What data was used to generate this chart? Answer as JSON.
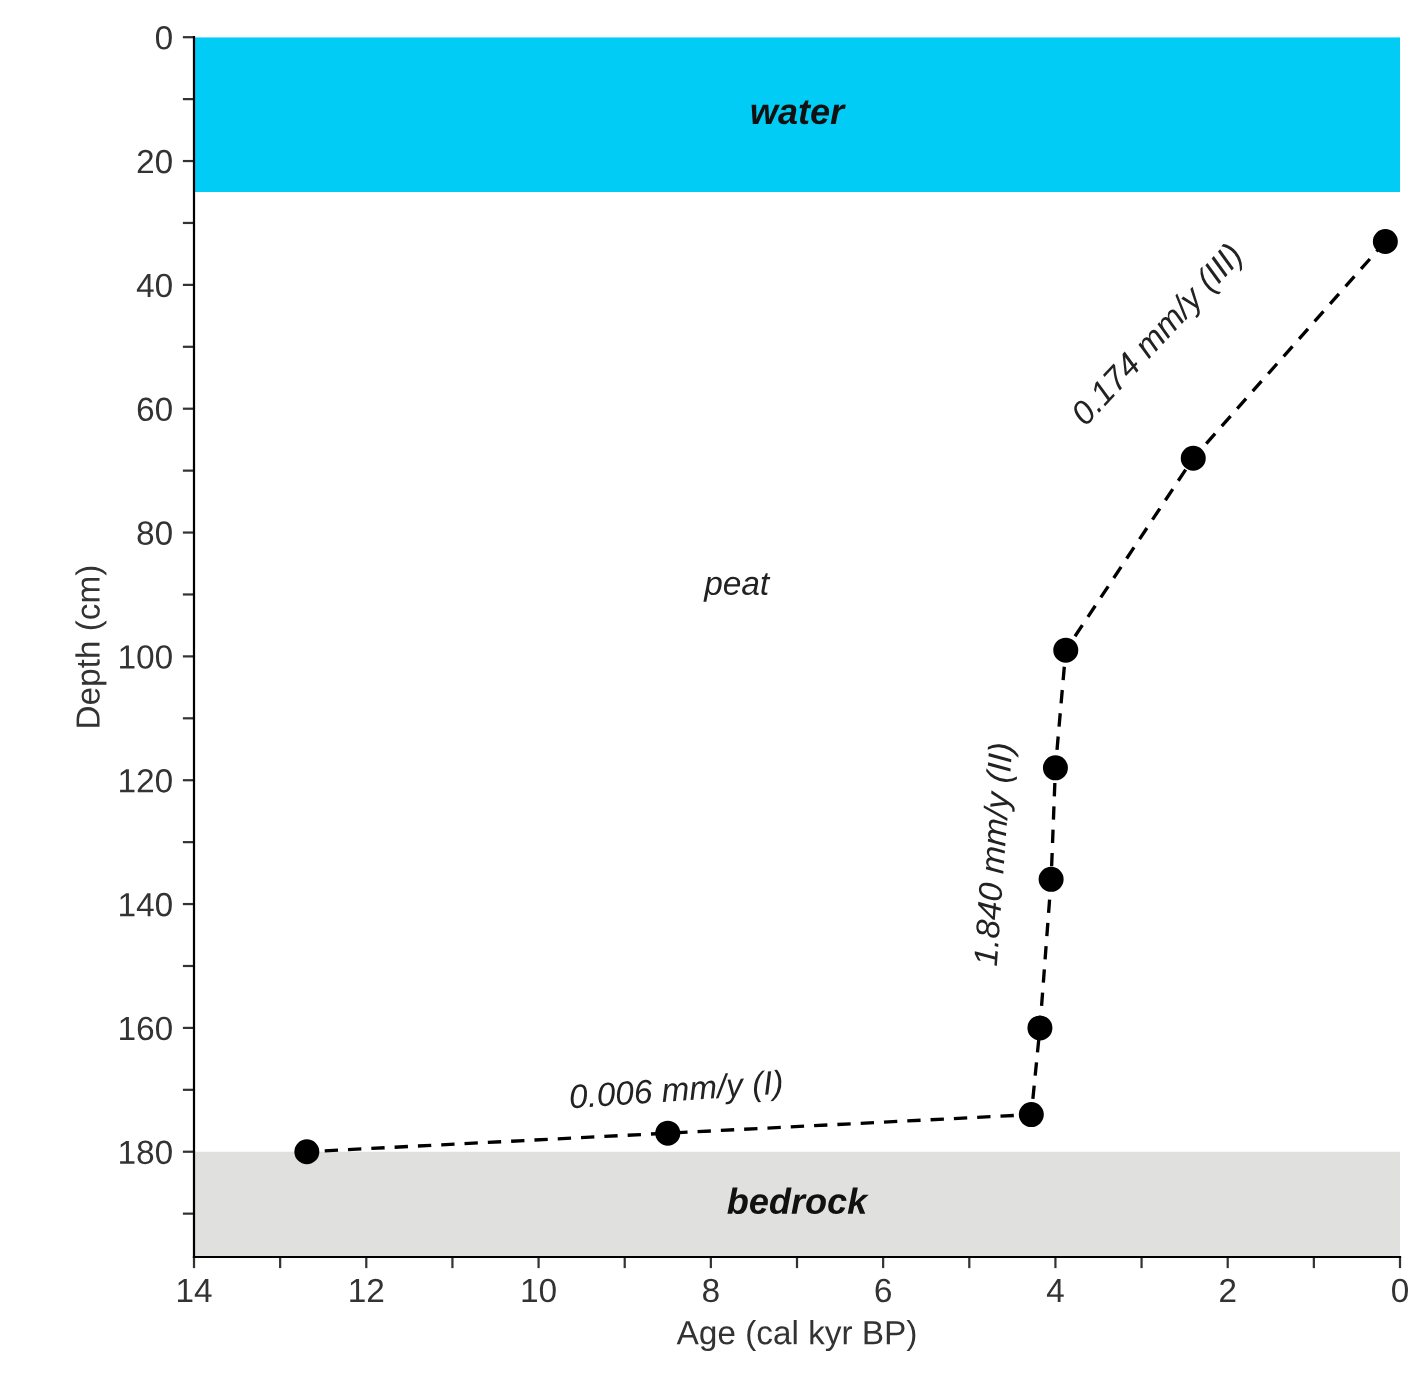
{
  "chart_data": {
    "type": "line",
    "xlabel": "Age (cal kyr BP)",
    "ylabel": "Depth (cm)",
    "x": [
      0.17,
      2.4,
      3.88,
      4.0,
      4.05,
      4.18,
      4.28,
      8.5,
      12.69
    ],
    "series": [
      {
        "color": "#000000",
        "values": [
          33,
          68,
          99,
          118,
          136,
          160,
          174,
          177,
          180
        ]
      }
    ],
    "marker": "circle",
    "line_style": "dashed",
    "grid": false,
    "legend": false,
    "xlim": [
      14,
      0
    ],
    "ylim": [
      197,
      0
    ],
    "xticks": [
      14,
      {
        "value": 13,
        "label": null
      },
      12,
      {
        "value": 11,
        "label": null
      },
      10,
      {
        "value": 9,
        "label": null
      },
      8,
      {
        "value": 7,
        "label": null
      },
      6,
      {
        "value": 5,
        "label": null
      },
      4,
      {
        "value": 3,
        "label": null
      },
      2,
      {
        "value": 1,
        "label": null
      },
      0
    ],
    "yticks": [
      0,
      {
        "value": 10,
        "label": null
      },
      20,
      {
        "value": 30,
        "label": null
      },
      40,
      {
        "value": 50,
        "label": null
      },
      60,
      {
        "value": 70,
        "label": null
      },
      80,
      {
        "value": 90,
        "label": null
      },
      100,
      {
        "value": 110,
        "label": null
      },
      120,
      {
        "value": 130,
        "label": null
      },
      140,
      {
        "value": 150,
        "label": null
      },
      160,
      {
        "value": 170,
        "label": null
      },
      180,
      {
        "value": 190,
        "label": null
      }
    ],
    "bands": [
      {
        "axis": "y",
        "from": 0,
        "to": 25,
        "label": "water",
        "color": "#00ccf5"
      },
      {
        "axis": "y",
        "from": 180,
        "to": 197,
        "label": "bedrock",
        "color": "#e0e0de"
      }
    ],
    "annotations": [
      "peat",
      "0.006 mm/y (I)",
      "1.840 mm/y (II)",
      "0.174 mm/y (III)"
    ]
  }
}
